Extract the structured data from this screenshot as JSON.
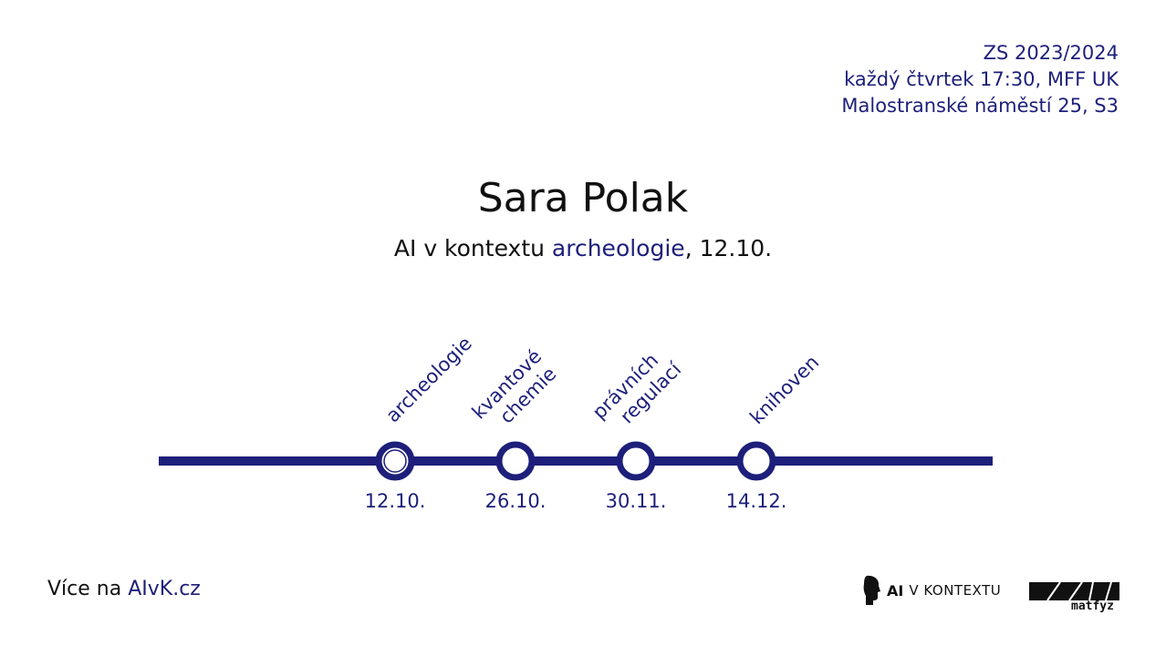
{
  "info": {
    "line1": "ZS 2023/2024",
    "line2": "každý čtvrtek 17:30, MFF UK",
    "line3": "Malostranské náměstí 25, S3"
  },
  "speaker": "Sara Polak",
  "talk": {
    "prefix": "AI v kontextu ",
    "topic": "archeologie",
    "suffix": ", 12.10."
  },
  "timeline": {
    "stops": [
      {
        "label_lines": [
          "archeologie"
        ],
        "date": "12.10.",
        "current": true
      },
      {
        "label_lines": [
          "kvantové",
          "chemie"
        ],
        "date": "26.10.",
        "current": false
      },
      {
        "label_lines": [
          "právních",
          "regulací"
        ],
        "date": "30.11.",
        "current": false
      },
      {
        "label_lines": [
          "knihoven"
        ],
        "date": "14.12.",
        "current": false
      }
    ]
  },
  "footer": {
    "more_prefix": "Více na ",
    "more_link": "AIvK.cz",
    "logo_ai_text": "AI",
    "logo_kontext_text": "V KONTEXTU",
    "logo_matfyz_text": "matfyz"
  },
  "colors": {
    "accent": "#1d1f7a",
    "text": "#111111",
    "background": "#ffffff"
  }
}
